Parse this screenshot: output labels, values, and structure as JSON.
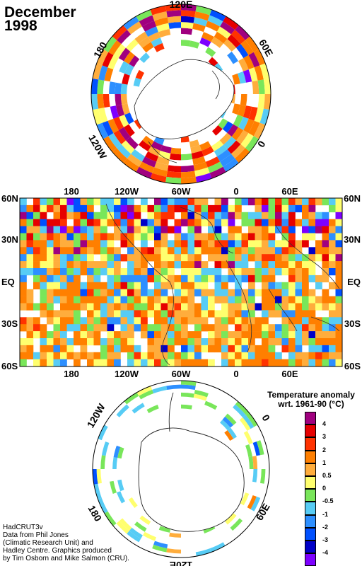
{
  "title": {
    "line1": "December",
    "line2": "1998"
  },
  "north_polar": {
    "labels": {
      "top": "120E",
      "right": "60E",
      "right_lower": "0",
      "left": "180",
      "left_lower": "120W"
    }
  },
  "world_map": {
    "top_lon_labels": [
      "180",
      "120W",
      "60W",
      "0",
      "60E"
    ],
    "bottom_lon_labels": [
      "180",
      "120W",
      "60W",
      "0",
      "60E"
    ],
    "lat_labels": [
      "60N",
      "30N",
      "EQ",
      "30S",
      "60S"
    ]
  },
  "south_polar": {
    "labels": {
      "left_upper": "120W",
      "right_upper": "0",
      "left_lower": "180",
      "right_lower": "60E",
      "bottom": "120E"
    }
  },
  "legend": {
    "title_line1": "Temperature anomaly",
    "title_line2": "wrt. 1961-90  (°C)",
    "bins": [
      {
        "label": "4",
        "color": "#a0007f"
      },
      {
        "label": "3",
        "color": "#e60000"
      },
      {
        "label": "2",
        "color": "#ff3200"
      },
      {
        "label": "1",
        "color": "#ff7f00"
      },
      {
        "label": "0.5",
        "color": "#ffad3c"
      },
      {
        "label": "0",
        "color": "#ffff6e"
      },
      {
        "label": "-0.5",
        "color": "#79e65a"
      },
      {
        "label": "-1",
        "color": "#57ccf5"
      },
      {
        "label": "-2",
        "color": "#2d8fff"
      },
      {
        "label": "-3",
        "color": "#0050ff"
      },
      {
        "label": "-4",
        "color": "#0000c8"
      },
      {
        "label": "",
        "color": "#7d00ff"
      }
    ]
  },
  "credits": [
    "HadCRUT3v",
    "Data from Phil Jones",
    "(Climatic Research Unit) and",
    "Hadley Centre.  Graphics produced",
    "by Tim Osborn and Mike Salmon (CRU)."
  ]
}
